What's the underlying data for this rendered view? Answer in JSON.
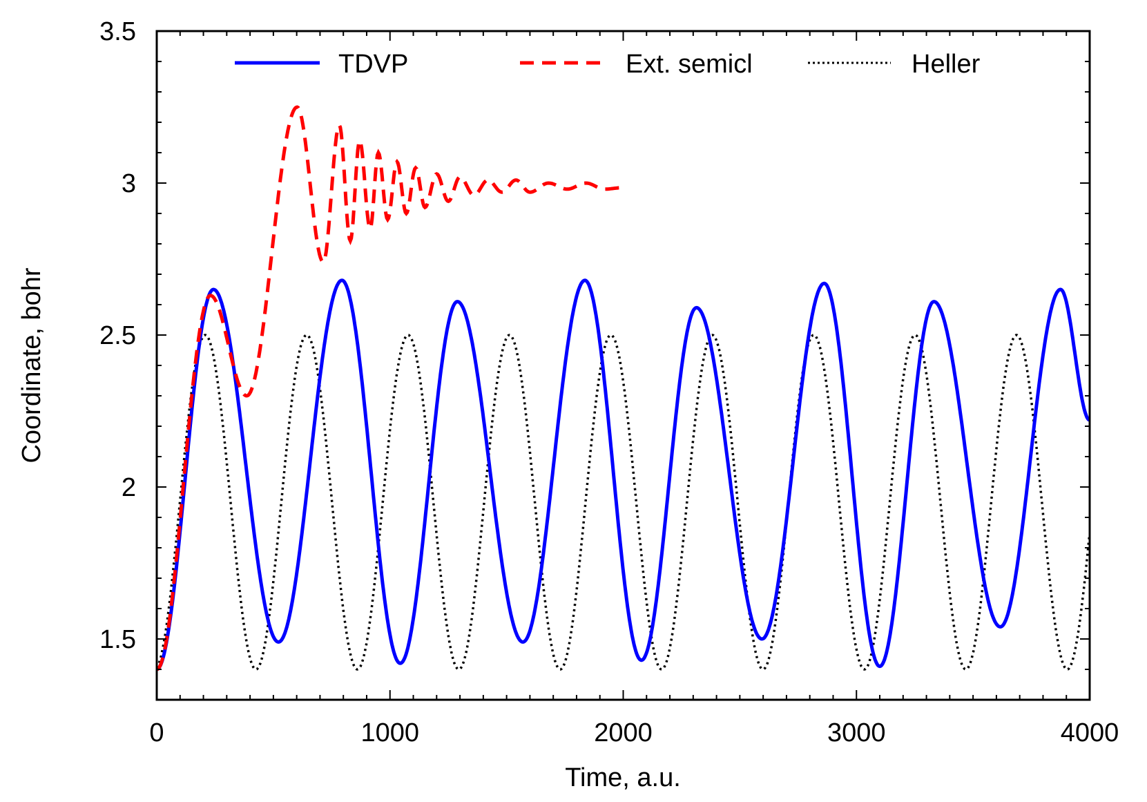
{
  "chart_data": {
    "type": "line",
    "title": "",
    "xlabel": "Time, a.u.",
    "ylabel": "Coordinate, bohr",
    "xlim": [
      0,
      4000
    ],
    "ylim": [
      1.3,
      3.5
    ],
    "x_ticks": [
      0,
      1000,
      2000,
      3000,
      4000
    ],
    "x_tick_labels": [
      "0",
      "1000",
      "2000",
      "3000",
      "4000"
    ],
    "x_minor_step": 100,
    "y_ticks": [
      1.5,
      2,
      2.5,
      3,
      3.5
    ],
    "y_tick_labels": [
      "1.5",
      "2",
      "2.5",
      "3",
      "3.5"
    ],
    "y_minor_step": 0.1,
    "grid": false,
    "legend_position": "top-inside",
    "series": [
      {
        "name": "TDVP",
        "color": "#0000ff",
        "style": "solid",
        "extrema": [
          [
            0,
            1.4
          ],
          [
            243,
            2.65
          ],
          [
            522,
            1.49
          ],
          [
            794,
            2.68
          ],
          [
            1044,
            1.42
          ],
          [
            1289,
            2.61
          ],
          [
            1570,
            1.49
          ],
          [
            1836,
            2.68
          ],
          [
            2078,
            1.43
          ],
          [
            2314,
            2.59
          ],
          [
            2595,
            1.5
          ],
          [
            2862,
            2.67
          ],
          [
            3100,
            1.41
          ],
          [
            3332,
            2.61
          ],
          [
            3617,
            1.54
          ],
          [
            3875,
            2.65
          ],
          [
            4000,
            2.22
          ]
        ]
      },
      {
        "name": "Ext. semicl",
        "color": "#ff0000",
        "style": "dashed",
        "extrema": [
          [
            0,
            1.4
          ],
          [
            230,
            2.63
          ],
          [
            386,
            2.3
          ],
          [
            602,
            3.25
          ],
          [
            714,
            2.74
          ],
          [
            783,
            3.19
          ],
          [
            830,
            2.81
          ],
          [
            870,
            3.14
          ],
          [
            915,
            2.85
          ],
          [
            950,
            3.1
          ],
          [
            990,
            2.88
          ],
          [
            1030,
            3.07
          ],
          [
            1070,
            2.9
          ],
          [
            1110,
            3.05
          ],
          [
            1150,
            2.92
          ],
          [
            1200,
            3.03
          ],
          [
            1250,
            2.94
          ],
          [
            1300,
            3.02
          ],
          [
            1360,
            2.96
          ],
          [
            1420,
            3.01
          ],
          [
            1480,
            2.97
          ],
          [
            1540,
            3.01
          ],
          [
            1600,
            2.97
          ],
          [
            1680,
            3.0
          ],
          [
            1760,
            2.98
          ],
          [
            1840,
            3.0
          ],
          [
            1920,
            2.98
          ],
          [
            2000,
            2.985
          ]
        ]
      },
      {
        "name": "Heller",
        "color": "#000000",
        "style": "dotted",
        "model": {
          "mean": 1.95,
          "amplitude": 0.55,
          "period": 434.8,
          "first_peak_t": 208
        },
        "peaks_t": [
          208,
          643,
          1078,
          1512,
          1947,
          2382,
          2817,
          3252,
          3686
        ],
        "peak_value": 2.5,
        "min_value": 1.4
      }
    ]
  }
}
